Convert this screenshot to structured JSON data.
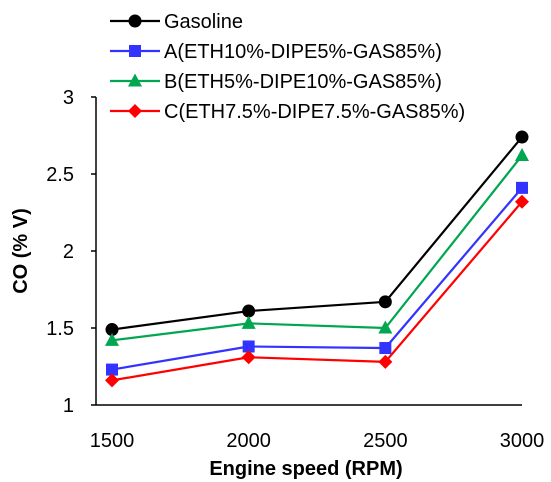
{
  "chart_data": {
    "type": "line",
    "xlabel": "Engine speed (RPM)",
    "ylabel": "CO (% V)",
    "categories": [
      1500,
      2000,
      2500,
      3000
    ],
    "ylim": [
      1,
      3
    ],
    "yticks": [
      "1",
      "1.5",
      "2",
      "2.5",
      "3"
    ],
    "grid": false,
    "legend_position": "top-left",
    "series": [
      {
        "name": "Gasoline",
        "color": "#000000",
        "marker": "circle",
        "values": [
          1.49,
          1.61,
          1.67,
          2.74
        ]
      },
      {
        "name": "A(ETH10%-DIPE5%-GAS85%)",
        "color": "#3333ff",
        "marker": "square",
        "values": [
          1.23,
          1.38,
          1.37,
          2.41
        ]
      },
      {
        "name": "B(ETH5%-DIPE10%-GAS85%)",
        "color": "#00a650",
        "marker": "triangle",
        "values": [
          1.42,
          1.53,
          1.5,
          2.62
        ]
      },
      {
        "name": "C(ETH7.5%-DIPE7.5%-GAS85%)",
        "color": "#ff0000",
        "marker": "diamond",
        "values": [
          1.16,
          1.31,
          1.28,
          2.32
        ]
      }
    ]
  }
}
